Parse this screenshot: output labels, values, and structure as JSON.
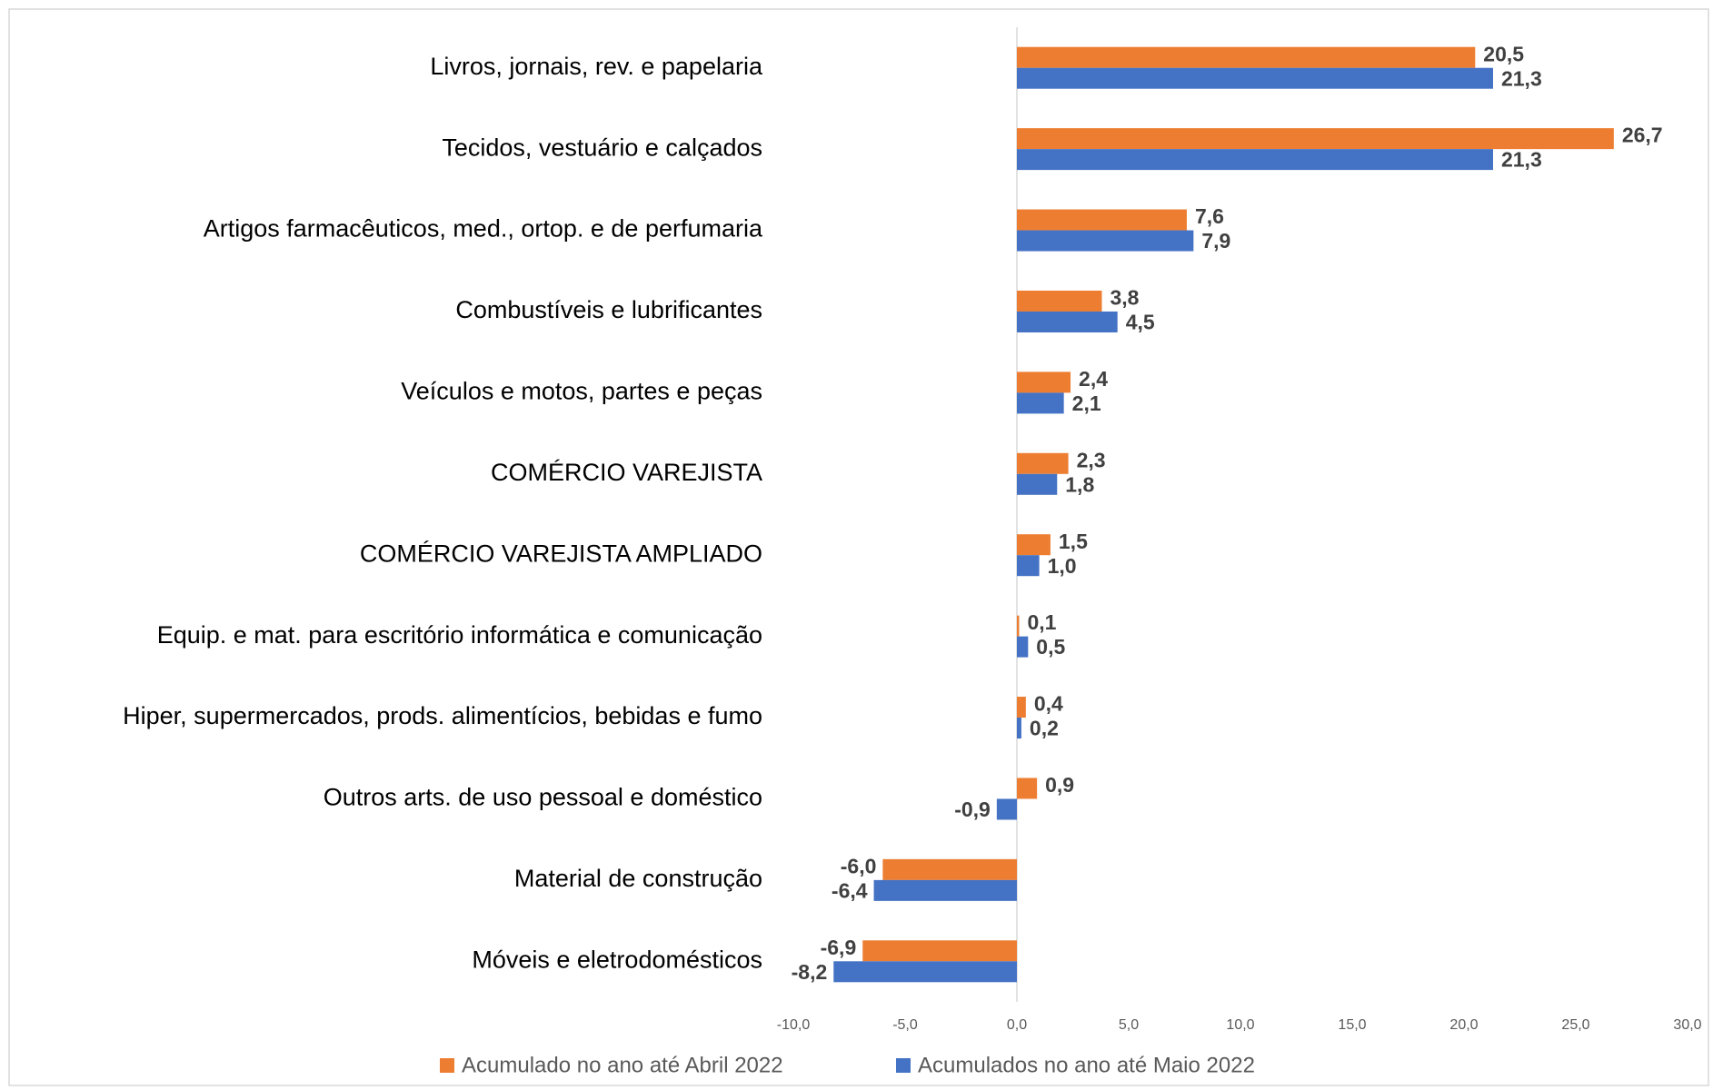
{
  "chart_data": {
    "type": "bar",
    "orientation": "horizontal",
    "categories": [
      "Livros, jornais, rev. e papelaria",
      "Tecidos, vestuário e calçados",
      "Artigos farmacêuticos, med., ortop. e de perfumaria",
      "Combustíveis e lubrificantes",
      "Veículos e motos, partes e peças",
      "COMÉRCIO VAREJISTA",
      "COMÉRCIO VAREJISTA AMPLIADO",
      "Equip. e mat. para escritório informática e comunicação",
      "Hiper, supermercados, prods.  alimentícios, bebidas e fumo",
      "Outros arts. de uso pessoal e doméstico",
      "Material de construção",
      "Móveis e eletrodomésticos"
    ],
    "series": [
      {
        "name": "Acumulado no ano até Abril 2022",
        "color": "#ed7d31",
        "values": [
          20.5,
          26.7,
          7.6,
          3.8,
          2.4,
          2.3,
          1.5,
          0.1,
          0.4,
          0.9,
          -6.0,
          -6.9
        ],
        "value_labels": [
          "20,5",
          "26,7",
          "7,6",
          "3,8",
          "2,4",
          "2,3",
          "1,5",
          "0,1",
          "0,4",
          "0,9",
          "-6,0",
          "-6,9"
        ]
      },
      {
        "name": "Acumulados no ano até Maio 2022",
        "color": "#4472c4",
        "values": [
          21.3,
          21.3,
          7.9,
          4.5,
          2.1,
          1.8,
          1.0,
          0.5,
          0.2,
          -0.9,
          -6.4,
          -8.2
        ],
        "value_labels": [
          "21,3",
          "21,3",
          "7,9",
          "4,5",
          "2,1",
          "1,8",
          "1,0",
          "0,5",
          "0,2",
          "-0,9",
          "-6,4",
          "-8,2"
        ]
      }
    ],
    "xlim": [
      -10,
      30
    ],
    "xticks": [
      {
        "value": -10,
        "label": "-10,0"
      },
      {
        "value": -5,
        "label": "-5,0"
      },
      {
        "value": 0,
        "label": "0,0"
      },
      {
        "value": 5,
        "label": "5,0"
      },
      {
        "value": 10,
        "label": "10,0"
      },
      {
        "value": 15,
        "label": "15,0"
      },
      {
        "value": 20,
        "label": "20,0"
      },
      {
        "value": 25,
        "label": "25,0"
      },
      {
        "value": 30,
        "label": "30,0"
      }
    ],
    "legend": "bottom"
  }
}
